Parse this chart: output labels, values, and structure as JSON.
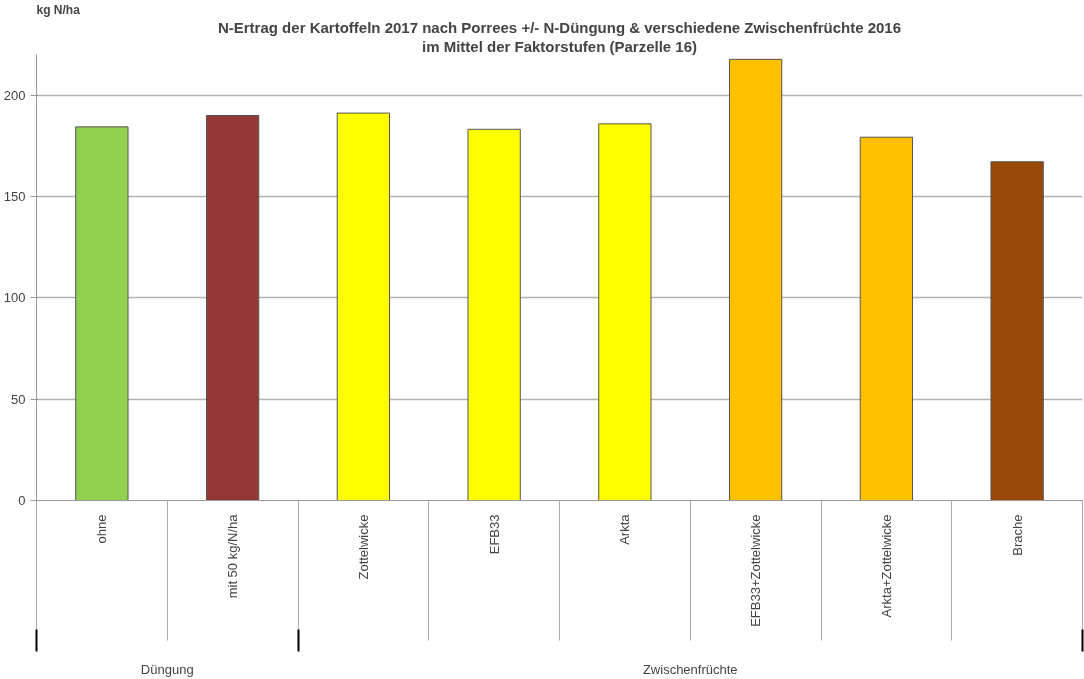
{
  "chart_data": {
    "type": "bar",
    "title": "N-Ertrag der Kartoffeln 2017 nach Porrees +/- N-Düngung & verschiedene Zwischenfrüchte 2016",
    "subtitle": "im Mittel der Faktorstufen (Parzelle 16)",
    "ylabel": "kg N/ha",
    "categories": [
      "ohne",
      "mit 50 kg/N/ha",
      "Zottelwicke",
      "EFB33",
      "Arkta",
      "EFB33+Zottelwicke",
      "Arkta+Zottelwicke",
      "Brache"
    ],
    "values": [
      184.3,
      189.9,
      191.1,
      183.1,
      185.8,
      217.6,
      179.2,
      167.1
    ],
    "colors": [
      "#92d050",
      "#953735",
      "#ffff00",
      "#ffff00",
      "#ffff00",
      "#ffc000",
      "#ffc000",
      "#984807"
    ],
    "annotations": [
      "Düngung",
      "Zwischenfrüchte"
    ],
    "ylim": [
      0,
      220
    ],
    "yticks": [
      0,
      50,
      100,
      150,
      200
    ],
    "grid": "y"
  }
}
